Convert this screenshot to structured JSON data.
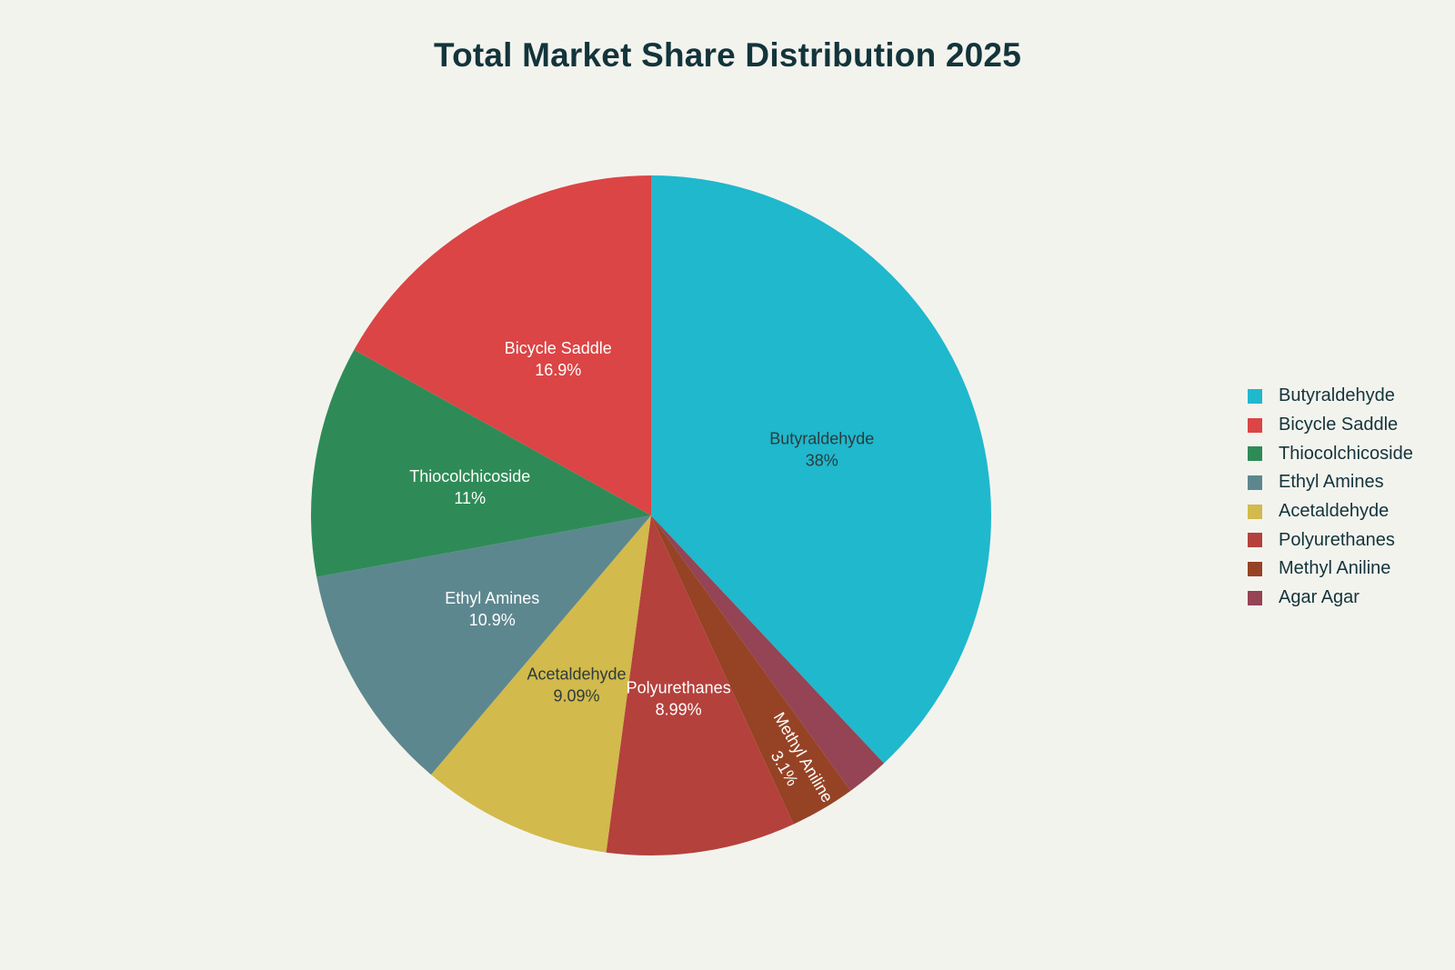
{
  "chart_data": {
    "type": "pie",
    "title": "Total Market Share Distribution 2025",
    "legend_position": "right",
    "start_angle_deg": 0,
    "direction": "clockwise",
    "slices": [
      {
        "label": "Butyraldehyde",
        "value": 38,
        "display": "38%",
        "color": "#1fb8cd",
        "text_color": "#2d3b3d",
        "show_label": true
      },
      {
        "label": "Agar Agar",
        "value": 2.02,
        "display": "",
        "color": "#944454",
        "text_color": "#ffffff",
        "show_label": false
      },
      {
        "label": "Methyl Aniline",
        "value": 3.1,
        "display": "3.1%",
        "color": "#964325",
        "text_color": "#ffffff",
        "show_label": true,
        "rotated": true
      },
      {
        "label": "Polyurethanes",
        "value": 8.99,
        "display": "8.99%",
        "color": "#b4413c",
        "text_color": "#ffffff",
        "show_label": true
      },
      {
        "label": "Acetaldehyde",
        "value": 9.09,
        "display": "9.09%",
        "color": "#d2ba4c",
        "text_color": "#2d3b3d",
        "show_label": true
      },
      {
        "label": "Ethyl Amines",
        "value": 10.9,
        "display": "10.9%",
        "color": "#5d878f",
        "text_color": "#ffffff",
        "show_label": true
      },
      {
        "label": "Thiocolchicoside",
        "value": 11,
        "display": "11%",
        "color": "#2e8b57",
        "text_color": "#ffffff",
        "show_label": true
      },
      {
        "label": "Bicycle Saddle",
        "value": 16.9,
        "display": "16.9%",
        "color": "#db4545",
        "text_color": "#ffffff",
        "show_label": true
      }
    ],
    "legend": [
      {
        "label": "Butyraldehyde",
        "color": "#1fb8cd"
      },
      {
        "label": "Bicycle Saddle",
        "color": "#db4545"
      },
      {
        "label": "Thiocolchicoside",
        "color": "#2e8b57"
      },
      {
        "label": "Ethyl Amines",
        "color": "#5d878f"
      },
      {
        "label": "Acetaldehyde",
        "color": "#d2ba4c"
      },
      {
        "label": "Polyurethanes",
        "color": "#b4413c"
      },
      {
        "label": "Methyl Aniline",
        "color": "#964325"
      },
      {
        "label": "Agar Agar",
        "color": "#944454"
      }
    ]
  }
}
